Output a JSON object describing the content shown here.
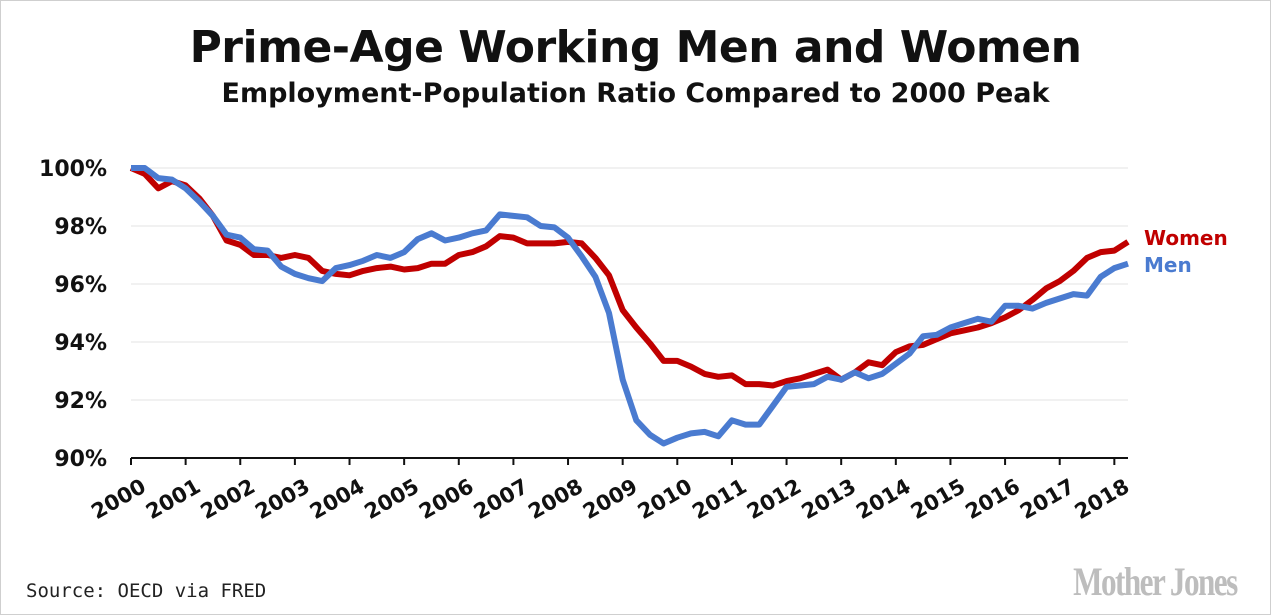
{
  "title": "Prime-Age Working Men and Women",
  "subtitle": "Employment-Population Ratio Compared to 2000 Peak",
  "source": "Source: OECD via FRED",
  "logo_text": "Mother Jones",
  "chart_data": {
    "type": "line",
    "title": "Prime-Age Working Men and Women",
    "subtitle": "Employment-Population Ratio Compared to 2000 Peak",
    "xlabel": "",
    "ylabel": "",
    "xlim": [
      2000,
      2018.25
    ],
    "ylim": [
      90,
      100
    ],
    "y_ticks": [
      "90%",
      "92%",
      "94%",
      "96%",
      "98%",
      "100%"
    ],
    "x_ticks": [
      "2000",
      "2001",
      "2002",
      "2003",
      "2004",
      "2005",
      "2006",
      "2007",
      "2008",
      "2009",
      "2010",
      "2011",
      "2012",
      "2013",
      "2014",
      "2015",
      "2016",
      "2017",
      "2018"
    ],
    "grid": true,
    "legend": "right-end labels",
    "x": [
      2000.0,
      2000.25,
      2000.5,
      2000.75,
      2001.0,
      2001.25,
      2001.5,
      2001.75,
      2002.0,
      2002.25,
      2002.5,
      2002.75,
      2003.0,
      2003.25,
      2003.5,
      2003.75,
      2004.0,
      2004.25,
      2004.5,
      2004.75,
      2005.0,
      2005.25,
      2005.5,
      2005.75,
      2006.0,
      2006.25,
      2006.5,
      2006.75,
      2007.0,
      2007.25,
      2007.5,
      2007.75,
      2008.0,
      2008.25,
      2008.5,
      2008.75,
      2009.0,
      2009.25,
      2009.5,
      2009.75,
      2010.0,
      2010.25,
      2010.5,
      2010.75,
      2011.0,
      2011.25,
      2011.5,
      2011.75,
      2012.0,
      2012.25,
      2012.5,
      2012.75,
      2013.0,
      2013.25,
      2013.5,
      2013.75,
      2014.0,
      2014.25,
      2014.5,
      2014.75,
      2015.0,
      2015.25,
      2015.5,
      2015.75,
      2016.0,
      2016.25,
      2016.5,
      2016.75,
      2017.0,
      2017.25,
      2017.5,
      2017.75,
      2018.0,
      2018.25
    ],
    "series": [
      {
        "name": "Women",
        "color": "#c00000",
        "values": [
          100.0,
          99.8,
          99.3,
          99.55,
          99.4,
          98.95,
          98.35,
          97.5,
          97.35,
          97.0,
          97.0,
          96.9,
          97.0,
          96.9,
          96.45,
          96.35,
          96.3,
          96.45,
          96.55,
          96.6,
          96.5,
          96.55,
          96.7,
          96.7,
          97.0,
          97.1,
          97.3,
          97.65,
          97.6,
          97.4,
          97.4,
          97.4,
          97.45,
          97.4,
          96.9,
          96.3,
          95.1,
          94.5,
          93.95,
          93.35,
          93.35,
          93.15,
          92.9,
          92.8,
          92.85,
          92.55,
          92.55,
          92.5,
          92.65,
          92.75,
          92.9,
          93.05,
          92.7,
          92.95,
          93.3,
          93.2,
          93.65,
          93.85,
          93.9,
          94.1,
          94.3,
          94.4,
          94.5,
          94.65,
          94.85,
          95.1,
          95.45,
          95.85,
          96.1,
          96.45,
          96.9,
          97.1,
          97.15,
          97.45
        ]
      },
      {
        "name": "Men",
        "color": "#4a7bd0",
        "values": [
          100.0,
          100.0,
          99.65,
          99.6,
          99.3,
          98.85,
          98.35,
          97.7,
          97.6,
          97.2,
          97.15,
          96.6,
          96.35,
          96.2,
          96.1,
          96.55,
          96.65,
          96.8,
          97.0,
          96.9,
          97.1,
          97.55,
          97.75,
          97.5,
          97.6,
          97.75,
          97.85,
          98.4,
          98.35,
          98.3,
          98.0,
          97.95,
          97.6,
          96.95,
          96.25,
          95.0,
          92.7,
          91.3,
          90.8,
          90.5,
          90.7,
          90.85,
          90.9,
          90.75,
          91.3,
          91.15,
          91.15,
          91.8,
          92.45,
          92.5,
          92.55,
          92.8,
          92.7,
          92.95,
          92.75,
          92.9,
          93.25,
          93.6,
          94.2,
          94.25,
          94.5,
          94.65,
          94.8,
          94.7,
          95.25,
          95.25,
          95.15,
          95.35,
          95.5,
          95.65,
          95.6,
          96.25,
          96.55,
          96.7
        ]
      }
    ]
  }
}
